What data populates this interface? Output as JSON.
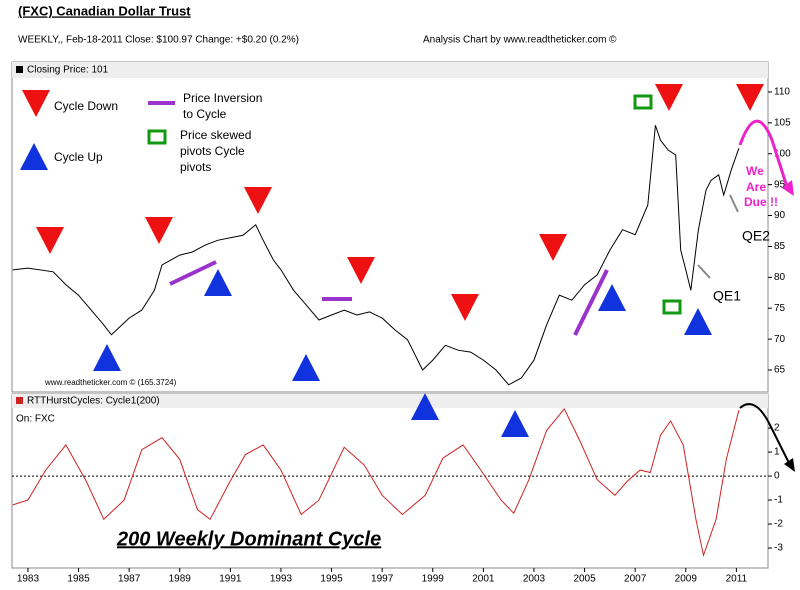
{
  "header": {
    "title": "(FXC) Canadian Dollar Trust",
    "subtitle": "WEEKLY,, Feb-18-2011  Close: $100.97  Change: +$0.20  (0.2%)",
    "credit": "Analysis Chart by www.readtheticker.com ©"
  },
  "chart_data": [
    {
      "type": "line",
      "title": "Closing Price: 101",
      "x": [
        1982.4,
        1983,
        1984,
        1984.5,
        1985,
        1985.5,
        1986,
        1986.3,
        1987,
        1987.5,
        1988,
        1988.3,
        1989,
        1989.5,
        1990,
        1990.5,
        1991,
        1991.5,
        1992,
        1992.3,
        1992.7,
        1993,
        1993.5,
        1994,
        1994.5,
        1995,
        1995.5,
        1996,
        1996.5,
        1997,
        1997.5,
        1998,
        1998.6,
        1999,
        1999.5,
        2000,
        2000.5,
        2001,
        2001.5,
        2002,
        2002.5,
        2003,
        2003.5,
        2004,
        2004.5,
        2005,
        2005.5,
        2006,
        2006.5,
        2007,
        2007.5,
        2007.8,
        2008,
        2008.3,
        2008.6,
        2008.8,
        2009,
        2009.2,
        2009.5,
        2009.8,
        2010,
        2010.3,
        2010.5,
        2010.8,
        2011.1
      ],
      "series": [
        {
          "name": "Closing Price",
          "color": "#000000",
          "values": [
            81.2,
            81.5,
            80.9,
            78.8,
            77.1,
            74.7,
            72.3,
            70.7,
            73.4,
            74.7,
            77.9,
            82,
            83.6,
            84.1,
            85.2,
            86,
            86.4,
            86.8,
            88.5,
            86,
            82.8,
            81.2,
            77.9,
            75.5,
            73.1,
            73.9,
            74.7,
            73.9,
            74.4,
            73.4,
            71.5,
            69.9,
            65,
            66.6,
            69,
            68.2,
            67.9,
            66.6,
            65,
            62.6,
            63.7,
            66.6,
            72.3,
            77.1,
            76.3,
            78.8,
            80.4,
            84.4,
            87.7,
            86.9,
            91.7,
            104.6,
            102.2,
            100.6,
            99.8,
            84.4,
            81.2,
            77.9,
            87.7,
            94.1,
            95.7,
            96.6,
            93.3,
            97.4,
            100.9
          ]
        }
      ],
      "xlim": [
        1982.37,
        2012.25
      ],
      "ylim": [
        61.44,
        114.85
      ],
      "yticks": [
        65,
        70,
        75,
        80,
        85,
        90,
        95,
        100,
        105,
        110
      ],
      "legend_items": [
        "Cycle Down",
        "Cycle Up",
        [
          "Price Inversion",
          "to Cycle"
        ],
        [
          "Price skewed",
          "pivots Cycle",
          "pivots"
        ]
      ],
      "annotations": [
        "We",
        "Are",
        "Due !!",
        "QE2",
        "QE1",
        "www.readtheticker.com © (165.3724)"
      ]
    },
    {
      "type": "line",
      "title": "RTTHurstCycles: Cycle1(200)",
      "subtitle": "On: FXC",
      "x": [
        1982.4,
        1983,
        1983.7,
        1984.5,
        1985.3,
        1986,
        1986.8,
        1987.5,
        1988.3,
        1989,
        1989.7,
        1990.2,
        1991,
        1991.6,
        1992.3,
        1993,
        1993.8,
        1994.5,
        1995.5,
        1996.3,
        1997,
        1997.8,
        1998.7,
        1999.4,
        2000.2,
        2000.9,
        2001.7,
        2002.2,
        2002.8,
        2003.5,
        2004.2,
        2004.8,
        2005.5,
        2006.2,
        2006.7,
        2007.2,
        2007.6,
        2008,
        2008.4,
        2008.9,
        2009.4,
        2009.7,
        2010.2,
        2010.6,
        2011.1
      ],
      "series": [
        {
          "name": "Cycle1(200)",
          "color": "#cc2222",
          "values": [
            -1.2,
            -1,
            0.25,
            1.3,
            -0.2,
            -1.8,
            -1,
            1.1,
            1.6,
            0.7,
            -1.4,
            -1.8,
            -0.2,
            0.9,
            1.3,
            0.25,
            -1.6,
            -1,
            1.2,
            0.45,
            -0.8,
            -1.6,
            -0.8,
            0.75,
            1.3,
            0.25,
            -1,
            -1.55,
            -0.15,
            1.9,
            2.8,
            1.5,
            -0.15,
            -0.8,
            -0.2,
            0.25,
            0.15,
            1.7,
            2.3,
            1.3,
            -1.8,
            -3.3,
            -1.8,
            0.7,
            2.75
          ]
        }
      ],
      "xlim": [
        1982.37,
        2012.25
      ],
      "ylim": [
        -3.83,
        3.42
      ],
      "yticks": [
        2,
        1,
        0,
        -1,
        -2,
        -3
      ],
      "xticks": [
        1983,
        1985,
        1987,
        1989,
        1991,
        1993,
        1995,
        1997,
        1999,
        2001,
        2003,
        2005,
        2007,
        2009,
        2011
      ],
      "hline": 0,
      "annotations": [
        "200 Weekly Dominant Cycle"
      ]
    }
  ]
}
